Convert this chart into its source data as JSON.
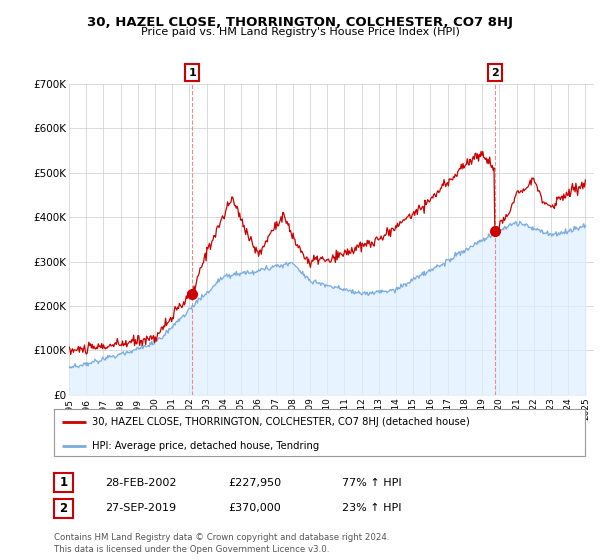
{
  "title": "30, HAZEL CLOSE, THORRINGTON, COLCHESTER, CO7 8HJ",
  "subtitle": "Price paid vs. HM Land Registry's House Price Index (HPI)",
  "ylim": [
    0,
    700000
  ],
  "yticks": [
    0,
    100000,
    200000,
    300000,
    400000,
    500000,
    600000,
    700000
  ],
  "ytick_labels": [
    "£0",
    "£100K",
    "£200K",
    "£300K",
    "£400K",
    "£500K",
    "£600K",
    "£700K"
  ],
  "house_color": "#cc0000",
  "hpi_color": "#7aacdc",
  "hpi_fill_color": "#ddeeff",
  "marker1_date": 2002.15,
  "marker1_price": 227950,
  "marker2_date": 2019.74,
  "marker2_price": 370000,
  "legend_house": "30, HAZEL CLOSE, THORRINGTON, COLCHESTER, CO7 8HJ (detached house)",
  "legend_hpi": "HPI: Average price, detached house, Tendring",
  "annotation1_label": "1",
  "annotation1_date": "28-FEB-2002",
  "annotation1_price": "£227,950",
  "annotation1_hpi": "77% ↑ HPI",
  "annotation2_label": "2",
  "annotation2_date": "27-SEP-2019",
  "annotation2_price": "£370,000",
  "annotation2_hpi": "23% ↑ HPI",
  "footer1": "Contains HM Land Registry data © Crown copyright and database right 2024.",
  "footer2": "This data is licensed under the Open Government Licence v3.0.",
  "background_color": "#ffffff",
  "grid_color": "#cccccc"
}
